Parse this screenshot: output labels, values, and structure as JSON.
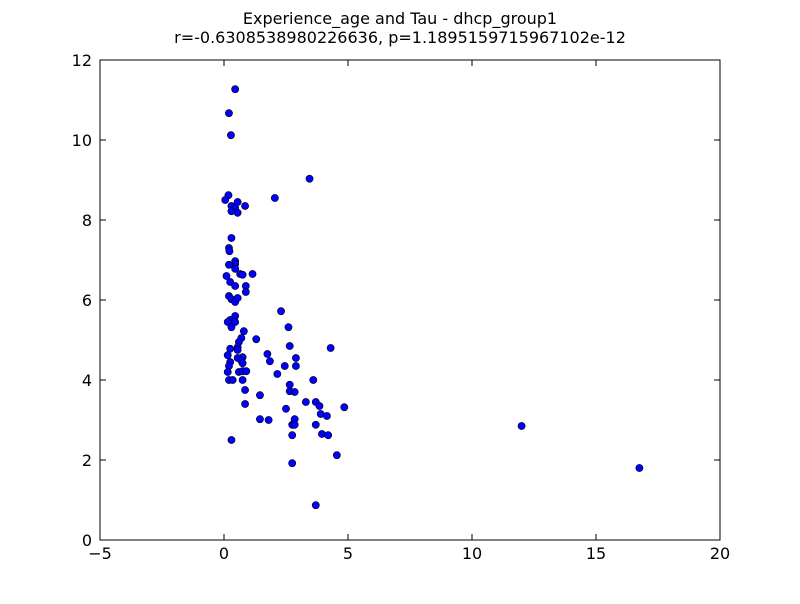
{
  "chart_data": {
    "type": "scatter",
    "title": "Experience_age and Tau - dhcp_group1",
    "subtitle": "r=-0.6308538980226636, p=1.1895159715967102e-12",
    "xlabel": "",
    "ylabel": "",
    "xlim": [
      -5,
      20
    ],
    "ylim": [
      0,
      12
    ],
    "x_ticks": [
      -5,
      0,
      5,
      10,
      15,
      20
    ],
    "y_ticks": [
      0,
      2,
      4,
      6,
      8,
      10,
      12
    ],
    "x_tick_labels": [
      "−5",
      "0",
      "5",
      "10",
      "15",
      "20"
    ],
    "y_tick_labels": [
      "0",
      "2",
      "4",
      "6",
      "8",
      "10",
      "12"
    ],
    "grid": false,
    "marker_color": "#0000ff",
    "marker_edge_color": "#000000",
    "points": [
      [
        0.45,
        11.27
      ],
      [
        0.2,
        10.67
      ],
      [
        0.28,
        10.12
      ],
      [
        3.45,
        9.03
      ],
      [
        2.05,
        8.55
      ],
      [
        0.18,
        8.62
      ],
      [
        0.05,
        8.5
      ],
      [
        0.3,
        8.35
      ],
      [
        0.45,
        8.3
      ],
      [
        0.55,
        8.45
      ],
      [
        0.85,
        8.35
      ],
      [
        0.3,
        8.22
      ],
      [
        0.55,
        8.18
      ],
      [
        0.3,
        7.55
      ],
      [
        0.2,
        7.3
      ],
      [
        0.22,
        7.22
      ],
      [
        0.45,
        6.97
      ],
      [
        0.45,
        6.9
      ],
      [
        0.2,
        6.88
      ],
      [
        0.45,
        6.78
      ],
      [
        0.65,
        6.65
      ],
      [
        0.75,
        6.63
      ],
      [
        1.15,
        6.65
      ],
      [
        0.1,
        6.6
      ],
      [
        0.25,
        6.45
      ],
      [
        0.45,
        6.35
      ],
      [
        0.88,
        6.35
      ],
      [
        0.88,
        6.2
      ],
      [
        0.2,
        6.1
      ],
      [
        0.3,
        6.02
      ],
      [
        0.45,
        5.95
      ],
      [
        0.55,
        6.05
      ],
      [
        2.3,
        5.72
      ],
      [
        0.45,
        5.6
      ],
      [
        0.25,
        5.5
      ],
      [
        0.45,
        5.45
      ],
      [
        0.15,
        5.45
      ],
      [
        0.3,
        5.32
      ],
      [
        2.6,
        5.32
      ],
      [
        0.8,
        5.22
      ],
      [
        0.7,
        5.05
      ],
      [
        0.6,
        4.95
      ],
      [
        1.3,
        5.02
      ],
      [
        0.55,
        4.82
      ],
      [
        2.65,
        4.85
      ],
      [
        4.3,
        4.8
      ],
      [
        0.55,
        4.75
      ],
      [
        0.25,
        4.78
      ],
      [
        0.15,
        4.62
      ],
      [
        1.75,
        4.65
      ],
      [
        0.75,
        4.57
      ],
      [
        0.55,
        4.55
      ],
      [
        0.7,
        4.48
      ],
      [
        2.9,
        4.55
      ],
      [
        1.85,
        4.47
      ],
      [
        0.25,
        4.45
      ],
      [
        0.75,
        4.42
      ],
      [
        0.2,
        4.35
      ],
      [
        2.45,
        4.35
      ],
      [
        2.9,
        4.35
      ],
      [
        0.6,
        4.2
      ],
      [
        0.75,
        4.22
      ],
      [
        0.9,
        4.22
      ],
      [
        0.15,
        4.2
      ],
      [
        2.15,
        4.15
      ],
      [
        0.2,
        4.0
      ],
      [
        0.35,
        4.0
      ],
      [
        0.75,
        4.0
      ],
      [
        3.6,
        4.0
      ],
      [
        2.65,
        3.88
      ],
      [
        0.85,
        3.75
      ],
      [
        2.65,
        3.72
      ],
      [
        2.85,
        3.7
      ],
      [
        1.45,
        3.62
      ],
      [
        3.3,
        3.45
      ],
      [
        3.7,
        3.45
      ],
      [
        0.85,
        3.4
      ],
      [
        2.5,
        3.28
      ],
      [
        3.85,
        3.35
      ],
      [
        4.85,
        3.32
      ],
      [
        3.9,
        3.15
      ],
      [
        4.15,
        3.1
      ],
      [
        1.45,
        3.02
      ],
      [
        1.8,
        3.0
      ],
      [
        2.85,
        3.02
      ],
      [
        2.8,
        2.88
      ],
      [
        2.75,
        2.88
      ],
      [
        2.85,
        2.88
      ],
      [
        3.7,
        2.88
      ],
      [
        12.0,
        2.85
      ],
      [
        2.75,
        2.62
      ],
      [
        3.95,
        2.65
      ],
      [
        4.2,
        2.62
      ],
      [
        0.3,
        2.5
      ],
      [
        4.55,
        2.12
      ],
      [
        2.75,
        1.92
      ],
      [
        16.75,
        1.8
      ],
      [
        3.7,
        0.87
      ]
    ]
  }
}
